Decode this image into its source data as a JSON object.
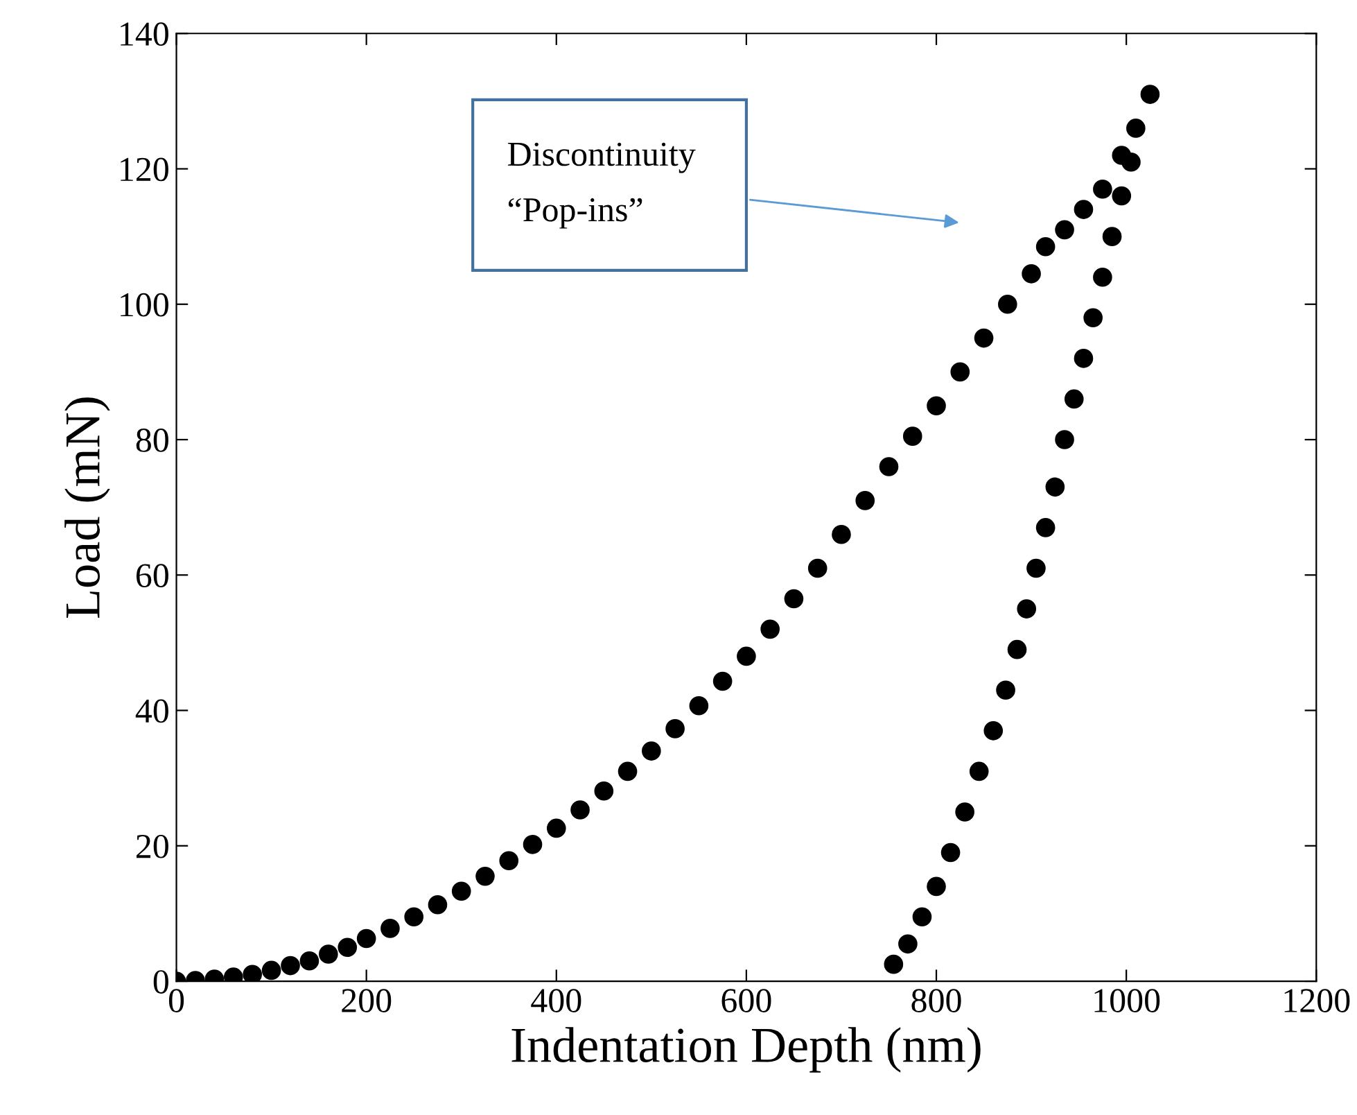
{
  "chart_data": {
    "type": "scatter",
    "xlabel": "Indentation Depth (nm)",
    "ylabel": "Load (mN)",
    "xlim": [
      0,
      1200
    ],
    "xticks": [
      0,
      200,
      400,
      600,
      800,
      1000,
      1200
    ],
    "ylim": [
      0,
      140
    ],
    "yticks": [
      0,
      20,
      40,
      60,
      80,
      100,
      120,
      140
    ],
    "grid": false,
    "legend": false,
    "marker": "circle",
    "annotations": [
      "Discontinuity\n“Pop-ins”"
    ],
    "series": [
      {
        "color": "#000000",
        "x": [
          0,
          20,
          40,
          60,
          80,
          100,
          120,
          140,
          160,
          180,
          200,
          225,
          250,
          275,
          300,
          325,
          350,
          375,
          400,
          425,
          450,
          475,
          500,
          525,
          550,
          575,
          600,
          625,
          650,
          675,
          700,
          725,
          750,
          775,
          800,
          825,
          850,
          875,
          900,
          915,
          935,
          955,
          975,
          995,
          1010,
          1025
        ],
        "values": [
          0,
          0.1,
          0.3,
          0.6,
          1,
          1.6,
          2.3,
          3,
          4,
          5,
          6.3,
          7.8,
          9.5,
          11.3,
          13.3,
          15.5,
          17.8,
          20.2,
          22.6,
          25.3,
          28.1,
          31,
          34,
          37.3,
          40.7,
          44.3,
          48,
          52,
          56.5,
          61,
          66,
          71,
          76,
          80.5,
          85,
          90,
          95,
          100,
          104.5,
          108.5,
          111,
          114,
          117,
          122,
          126,
          131
        ]
      },
      {
        "color": "#000000",
        "x": [
          1005,
          995,
          985,
          975,
          965,
          955,
          945,
          935,
          925,
          915,
          905,
          895,
          885,
          873,
          860,
          845,
          830,
          815,
          800,
          785,
          770,
          755
        ],
        "values": [
          121,
          116,
          110,
          104,
          98,
          92,
          86,
          80,
          73,
          67,
          61,
          55,
          49,
          43,
          37,
          31,
          25,
          19,
          14,
          9.5,
          5.5,
          2.5
        ]
      }
    ]
  }
}
